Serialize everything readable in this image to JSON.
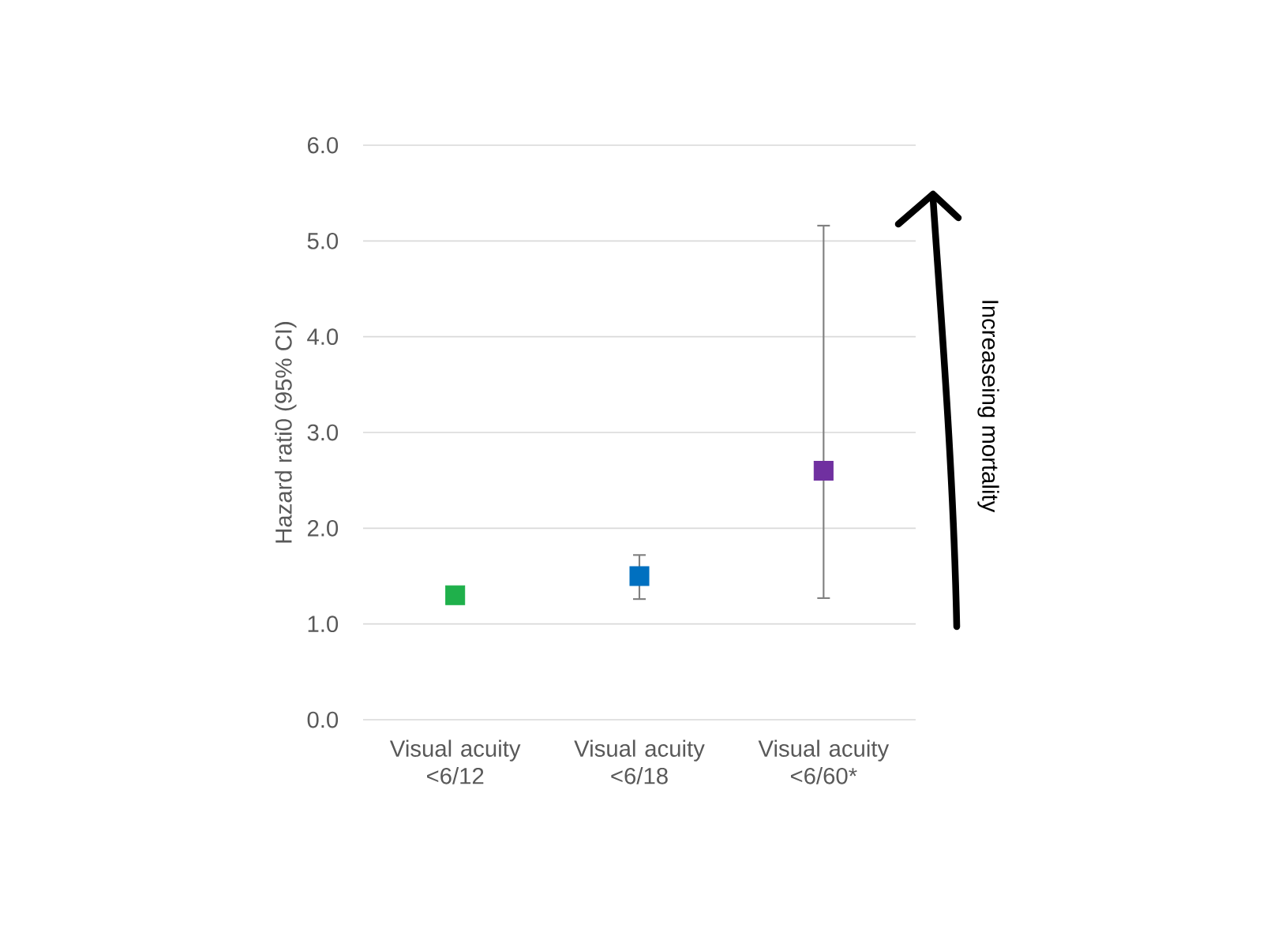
{
  "chart_data": {
    "type": "scatter",
    "ylabel": "Hazard rati0 (95% CI)",
    "categories": [
      "Visual acuity <6/12",
      "Visual acuity <6/18",
      "Visual acuity <6/60*"
    ],
    "values": [
      1.3,
      1.5,
      2.6
    ],
    "errors": [
      null,
      [
        1.26,
        1.72
      ],
      [
        1.27,
        5.16
      ]
    ],
    "colors": [
      "#1fb04b",
      "#0070c0",
      "#7030a0"
    ],
    "marker": "square",
    "ylim": [
      0,
      6
    ],
    "yticks": [
      {
        "value": 0,
        "label": "0.0"
      },
      {
        "value": 1,
        "label": "1.0"
      },
      {
        "value": 2,
        "label": "2.0"
      },
      {
        "value": 3,
        "label": "3.0"
      },
      {
        "value": 4,
        "label": "4.0"
      },
      {
        "value": 5,
        "label": "5.0"
      },
      {
        "value": 6,
        "label": "6.0"
      }
    ],
    "grid": "y",
    "annotations": [
      "Increaseing mortality"
    ]
  }
}
